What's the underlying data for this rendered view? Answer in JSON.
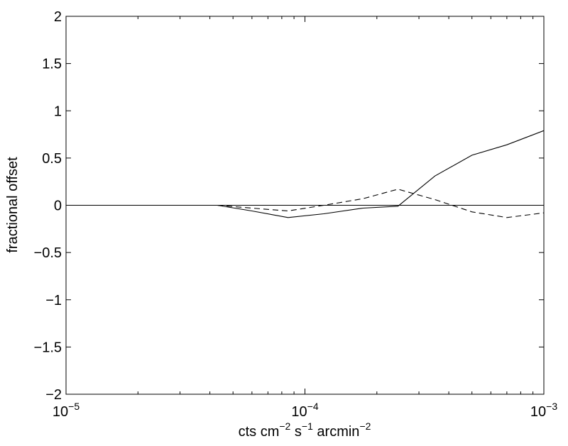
{
  "chart_data": {
    "type": "line",
    "xscale": "log",
    "xlim": [
      1e-05,
      0.001
    ],
    "ylim": [
      -2,
      2
    ],
    "xlabel": {
      "parts": [
        {
          "text": "cts cm",
          "sup": false
        },
        {
          "text": "−2",
          "sup": true
        },
        {
          "text": " s",
          "sup": false
        },
        {
          "text": "−1",
          "sup": true
        },
        {
          "text": " arcmin",
          "sup": false
        },
        {
          "text": "−2",
          "sup": true
        }
      ]
    },
    "ylabel": "fractional offset",
    "xticks": [
      {
        "value": 1e-05,
        "base": "10",
        "exp": "−5"
      },
      {
        "value": 0.0001,
        "base": "10",
        "exp": "−4"
      },
      {
        "value": 0.001,
        "base": "10",
        "exp": "−3"
      }
    ],
    "yticks": [
      {
        "value": 2,
        "label": "2"
      },
      {
        "value": 1.5,
        "label": "1.5"
      },
      {
        "value": 1,
        "label": "1"
      },
      {
        "value": 0.5,
        "label": "0.5"
      },
      {
        "value": 0,
        "label": "0"
      },
      {
        "value": -0.5,
        "label": "−0.5"
      },
      {
        "value": -1,
        "label": "−1"
      },
      {
        "value": -1.5,
        "label": "−1.5"
      },
      {
        "value": -2,
        "label": "−2"
      }
    ],
    "grid": false,
    "series": [
      {
        "style": "solid",
        "x": [
          4.3e-05,
          6e-05,
          8.5e-05,
          0.00012,
          0.000175,
          0.000245,
          0.00035,
          0.0005,
          0.0007,
          0.001
        ],
        "y": [
          0.0,
          -0.06,
          -0.13,
          -0.09,
          -0.03,
          -0.01,
          0.31,
          0.53,
          0.64,
          0.79
        ]
      },
      {
        "style": "dashed",
        "x": [
          4.3e-05,
          6e-05,
          8.5e-05,
          0.00012,
          0.000175,
          0.000245,
          0.00035,
          0.0005,
          0.0007,
          0.001
        ],
        "y": [
          0.0,
          -0.03,
          -0.06,
          0.0,
          0.07,
          0.17,
          0.06,
          -0.07,
          -0.13,
          -0.08
        ]
      }
    ],
    "reference_lines": [
      {
        "y": 0,
        "style": "solid"
      }
    ]
  }
}
